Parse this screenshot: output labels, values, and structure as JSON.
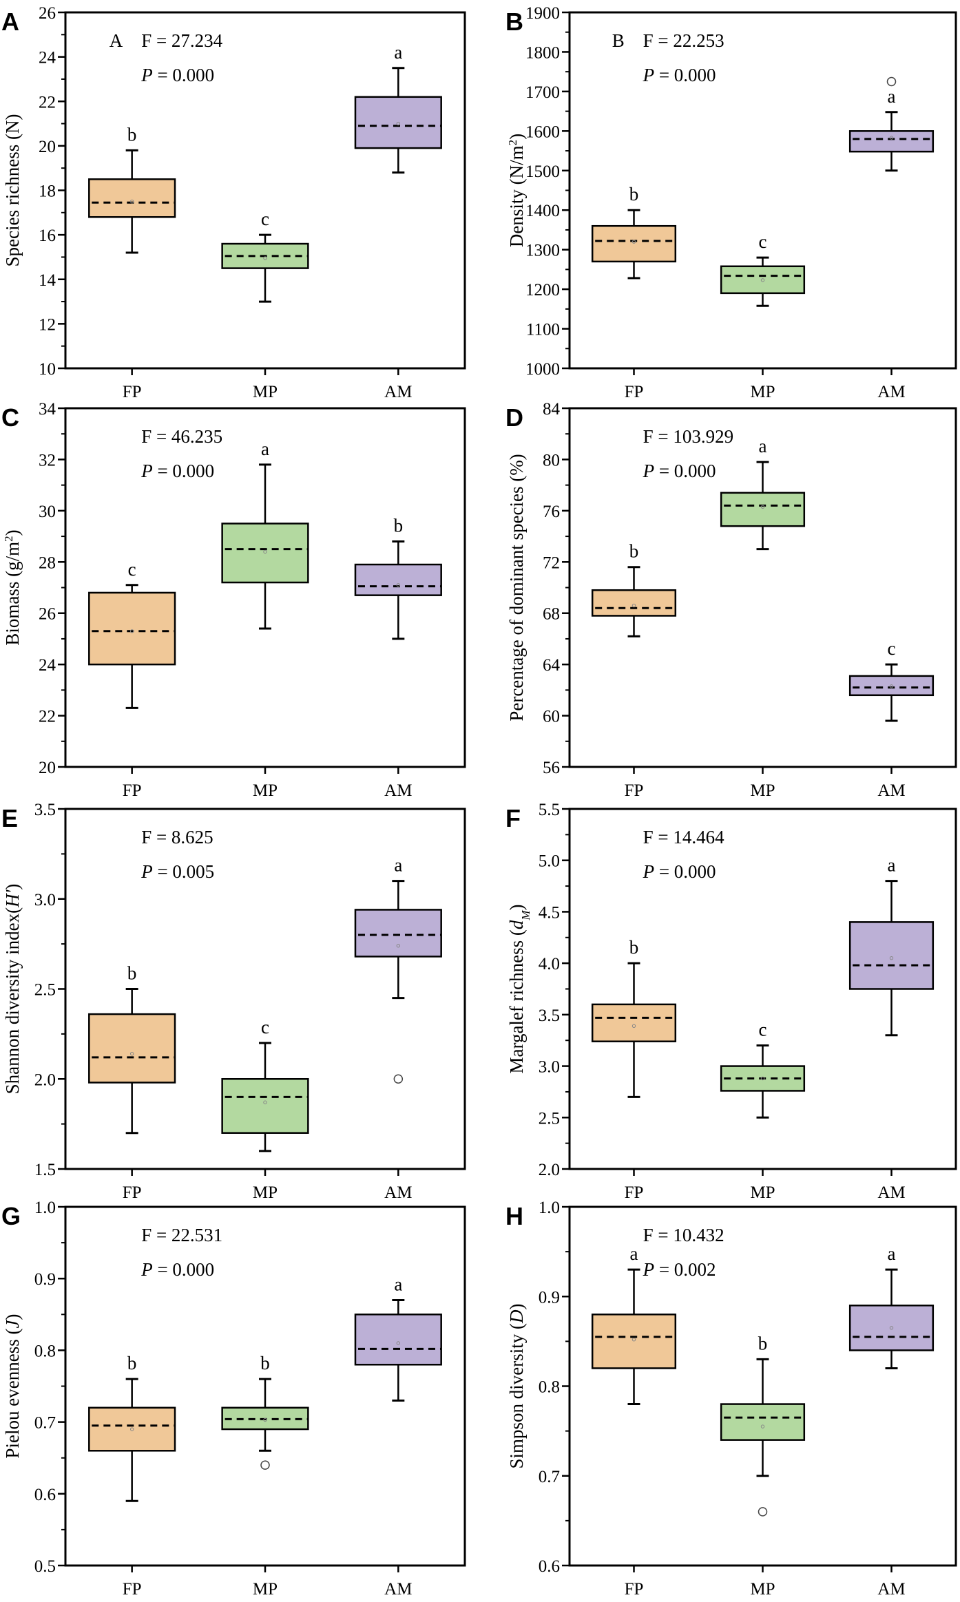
{
  "colors": {
    "FP": "#F0C898",
    "MP": "#B3D9A0",
    "AM": "#BCB0D6"
  },
  "chart_data": [
    {
      "type": "box",
      "panel": "A",
      "inner_label": "A",
      "stat_F": "F = 27.234",
      "stat_P_label": "P",
      "stat_P_value": " = 0.000",
      "ylabel_parts": [
        {
          "t": "Species richness (N)"
        }
      ],
      "ylim": [
        10,
        26
      ],
      "yticks": [
        10,
        12,
        14,
        16,
        18,
        20,
        22,
        24,
        26
      ],
      "minor_step": 1,
      "tick_decimals": 0,
      "categories": [
        "FP",
        "MP",
        "AM"
      ],
      "boxes": [
        {
          "min": 15.2,
          "q1": 16.8,
          "median": 17.45,
          "q3": 18.5,
          "max": 19.8,
          "mean": 17.5,
          "outliers": [],
          "letter": "b"
        },
        {
          "min": 13,
          "q1": 14.5,
          "median": 15.05,
          "q3": 15.6,
          "max": 16,
          "mean": 14.95,
          "outliers": [],
          "letter": "c"
        },
        {
          "min": 18.8,
          "q1": 19.9,
          "median": 20.9,
          "q3": 22.2,
          "max": 23.5,
          "mean": 21.0,
          "outliers": [],
          "letter": "a"
        }
      ]
    },
    {
      "type": "box",
      "panel": "B",
      "inner_label": "B",
      "stat_F": "F = 22.253",
      "stat_P_label": "P",
      "stat_P_value": " = 0.000",
      "ylabel_parts": [
        {
          "t": "Density (N/m"
        },
        {
          "t": "2",
          "s": "sup"
        },
        {
          "t": ")"
        }
      ],
      "ylim": [
        1000,
        1900
      ],
      "yticks": [
        1000,
        1100,
        1200,
        1300,
        1400,
        1500,
        1600,
        1700,
        1800,
        1900
      ],
      "minor_step": 50,
      "tick_decimals": 0,
      "categories": [
        "FP",
        "MP",
        "AM"
      ],
      "boxes": [
        {
          "min": 1228,
          "q1": 1270,
          "median": 1322,
          "q3": 1360,
          "max": 1400,
          "mean": 1320,
          "outliers": [],
          "letter": "b"
        },
        {
          "min": 1158,
          "q1": 1190,
          "median": 1234,
          "q3": 1258,
          "max": 1280,
          "mean": 1223,
          "outliers": [],
          "letter": "c"
        },
        {
          "min": 1500,
          "q1": 1548,
          "median": 1580,
          "q3": 1600,
          "max": 1648,
          "mean": 1583,
          "outliers": [
            1725
          ],
          "letter": "a"
        }
      ]
    },
    {
      "type": "box",
      "panel": "C",
      "inner_label": "",
      "stat_F": "F = 46.235",
      "stat_P_label": "P",
      "stat_P_value": " = 0.000",
      "ylabel_parts": [
        {
          "t": "Biomass (g/m"
        },
        {
          "t": "2",
          "s": "sup"
        },
        {
          "t": ")"
        }
      ],
      "ylim": [
        20,
        34
      ],
      "yticks": [
        20,
        22,
        24,
        26,
        28,
        30,
        32,
        34
      ],
      "minor_step": 1,
      "tick_decimals": 0,
      "categories": [
        "FP",
        "MP",
        "AM"
      ],
      "boxes": [
        {
          "min": 22.3,
          "q1": 24.0,
          "median": 25.3,
          "q3": 26.8,
          "max": 27.1,
          "mean": 25.3,
          "outliers": [],
          "letter": "c"
        },
        {
          "min": 25.4,
          "q1": 27.2,
          "median": 28.5,
          "q3": 29.5,
          "max": 31.8,
          "mean": 28.4,
          "outliers": [],
          "letter": "a"
        },
        {
          "min": 25.0,
          "q1": 26.7,
          "median": 27.05,
          "q3": 27.9,
          "max": 28.8,
          "mean": 27.1,
          "outliers": [],
          "letter": "b"
        }
      ]
    },
    {
      "type": "box",
      "panel": "D",
      "inner_label": "",
      "stat_F": "F = 103.929",
      "stat_P_label": "P",
      "stat_P_value": " = 0.000",
      "ylabel_parts": [
        {
          "t": "Percentage of dominant species (%)"
        }
      ],
      "ylim": [
        56,
        84
      ],
      "yticks": [
        56,
        60,
        64,
        68,
        72,
        76,
        80,
        84
      ],
      "minor_step": 2,
      "tick_decimals": 0,
      "categories": [
        "FP",
        "MP",
        "AM"
      ],
      "boxes": [
        {
          "min": 66.2,
          "q1": 67.8,
          "median": 68.4,
          "q3": 69.8,
          "max": 71.6,
          "mean": 68.6,
          "outliers": [],
          "letter": "b"
        },
        {
          "min": 73.0,
          "q1": 74.8,
          "median": 76.4,
          "q3": 77.4,
          "max": 79.8,
          "mean": 76.3,
          "outliers": [],
          "letter": "a"
        },
        {
          "min": 59.6,
          "q1": 61.6,
          "median": 62.2,
          "q3": 63.1,
          "max": 64.0,
          "mean": 62.3,
          "outliers": [],
          "letter": "c"
        }
      ]
    },
    {
      "type": "box",
      "panel": "E",
      "inner_label": "",
      "stat_F": "F = 8.625",
      "stat_P_label": "P",
      "stat_P_value": " = 0.005",
      "ylabel_parts": [
        {
          "t": "Shannon diversity index("
        },
        {
          "t": "H'",
          "s": "it"
        },
        {
          "t": ")"
        }
      ],
      "ylim": [
        1.5,
        3.5
      ],
      "yticks": [
        1.5,
        2.0,
        2.5,
        3.0,
        3.5
      ],
      "minor_step": 0.25,
      "tick_decimals": 1,
      "categories": [
        "FP",
        "MP",
        "AM"
      ],
      "boxes": [
        {
          "min": 1.7,
          "q1": 1.98,
          "median": 2.12,
          "q3": 2.36,
          "max": 2.5,
          "mean": 2.14,
          "outliers": [],
          "letter": "b"
        },
        {
          "min": 1.6,
          "q1": 1.7,
          "median": 1.9,
          "q3": 2.0,
          "max": 2.2,
          "mean": 1.87,
          "outliers": [],
          "letter": "c"
        },
        {
          "min": 2.45,
          "q1": 2.68,
          "median": 2.8,
          "q3": 2.94,
          "max": 3.1,
          "mean": 2.74,
          "outliers": [
            2.0
          ],
          "letter": "a"
        }
      ]
    },
    {
      "type": "box",
      "panel": "F",
      "inner_label": "",
      "stat_F": "F = 14.464",
      "stat_P_label": "P",
      "stat_P_value": " = 0.000",
      "ylabel_parts": [
        {
          "t": "Margalef richness ("
        },
        {
          "t": "d",
          "s": "it"
        },
        {
          "t": "M",
          "s": "itsub"
        },
        {
          "t": ")"
        }
      ],
      "ylim": [
        2.0,
        5.5
      ],
      "yticks": [
        2.0,
        2.5,
        3.0,
        3.5,
        4.0,
        4.5,
        5.0,
        5.5
      ],
      "minor_step": 0.25,
      "tick_decimals": 1,
      "categories": [
        "FP",
        "MP",
        "AM"
      ],
      "boxes": [
        {
          "min": 2.7,
          "q1": 3.24,
          "median": 3.47,
          "q3": 3.6,
          "max": 4.0,
          "mean": 3.39,
          "outliers": [],
          "letter": "b"
        },
        {
          "min": 2.5,
          "q1": 2.76,
          "median": 2.88,
          "q3": 3.0,
          "max": 3.2,
          "mean": 2.88,
          "outliers": [],
          "letter": "c"
        },
        {
          "min": 3.3,
          "q1": 3.75,
          "median": 3.98,
          "q3": 4.4,
          "max": 4.8,
          "mean": 4.05,
          "outliers": [],
          "letter": "a"
        }
      ]
    },
    {
      "type": "box",
      "panel": "G",
      "inner_label": "",
      "stat_F": "F = 22.531",
      "stat_P_label": "P",
      "stat_P_value": " = 0.000",
      "ylabel_parts": [
        {
          "t": "Pielou evenness ("
        },
        {
          "t": "J",
          "s": "it"
        },
        {
          "t": ")"
        }
      ],
      "ylim": [
        0.5,
        1.0
      ],
      "yticks": [
        0.5,
        0.6,
        0.7,
        0.8,
        0.9,
        1.0
      ],
      "minor_step": 0.05,
      "tick_decimals": 1,
      "categories": [
        "FP",
        "MP",
        "AM"
      ],
      "boxes": [
        {
          "min": 0.59,
          "q1": 0.66,
          "median": 0.695,
          "q3": 0.72,
          "max": 0.76,
          "mean": 0.69,
          "outliers": [],
          "letter": "b"
        },
        {
          "min": 0.66,
          "q1": 0.69,
          "median": 0.704,
          "q3": 0.72,
          "max": 0.76,
          "mean": 0.703,
          "outliers": [
            0.64
          ],
          "letter": "b"
        },
        {
          "min": 0.73,
          "q1": 0.78,
          "median": 0.802,
          "q3": 0.85,
          "max": 0.87,
          "mean": 0.81,
          "outliers": [],
          "letter": "a"
        }
      ]
    },
    {
      "type": "box",
      "panel": "H",
      "inner_label": "",
      "stat_F": "F = 10.432",
      "stat_P_label": "P",
      "stat_P_value": " = 0.002",
      "ylabel_parts": [
        {
          "t": "Simpson diversity ("
        },
        {
          "t": "D",
          "s": "it"
        },
        {
          "t": ")"
        }
      ],
      "ylim": [
        0.6,
        1.0
      ],
      "yticks": [
        0.6,
        0.7,
        0.8,
        0.9,
        1.0
      ],
      "minor_step": 0.05,
      "tick_decimals": 1,
      "categories": [
        "FP",
        "MP",
        "AM"
      ],
      "boxes": [
        {
          "min": 0.78,
          "q1": 0.82,
          "median": 0.855,
          "q3": 0.88,
          "max": 0.93,
          "mean": 0.852,
          "outliers": [],
          "letter": "a"
        },
        {
          "min": 0.7,
          "q1": 0.74,
          "median": 0.765,
          "q3": 0.78,
          "max": 0.83,
          "mean": 0.755,
          "outliers": [
            0.66
          ],
          "letter": "b"
        },
        {
          "min": 0.82,
          "q1": 0.84,
          "median": 0.855,
          "q3": 0.89,
          "max": 0.93,
          "mean": 0.865,
          "outliers": [],
          "letter": "a"
        }
      ]
    }
  ]
}
